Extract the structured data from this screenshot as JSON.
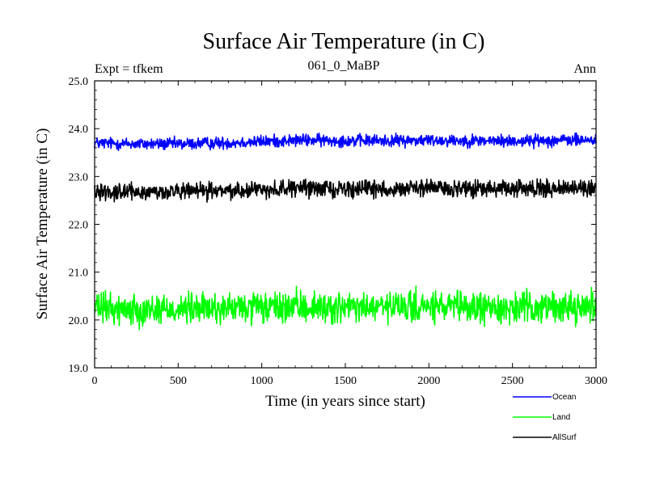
{
  "chart_data": {
    "type": "line",
    "title": "Surface Air Temperature (in C)",
    "subtitle": "061_0_MaBP",
    "left_note": "Expt = tfkem",
    "right_note": "Ann",
    "xlabel": "Time (in years since start)",
    "ylabel": "Surface Air Temperature (in C)",
    "xlim": [
      0,
      3000
    ],
    "ylim": [
      19.0,
      25.0
    ],
    "xticks": [
      0,
      500,
      1000,
      1500,
      2000,
      2500,
      3000
    ],
    "xtick_labels": [
      "0",
      "500",
      "1000",
      "1500",
      "2000",
      "2500",
      "3000"
    ],
    "yticks": [
      19.0,
      20.0,
      21.0,
      22.0,
      23.0,
      24.0,
      25.0
    ],
    "ytick_labels": [
      "19.0",
      "20.0",
      "21.0",
      "22.0",
      "23.0",
      "24.0",
      "25.0"
    ],
    "grid": false,
    "legend_position": "bottom-right outside plot",
    "series": [
      {
        "name": "Ocean",
        "color": "#0000ff",
        "x": [
          0,
          250,
          500,
          750,
          1000,
          1250,
          1500,
          1750,
          2000,
          2250,
          2500,
          2750,
          3000
        ],
        "values": [
          23.7,
          23.68,
          23.68,
          23.7,
          23.73,
          23.76,
          23.75,
          23.75,
          23.76,
          23.75,
          23.74,
          23.76,
          23.76
        ],
        "noise_amplitude": 0.12
      },
      {
        "name": "Land",
        "color": "#00ff00",
        "x": [
          0,
          250,
          500,
          750,
          1000,
          1250,
          1500,
          1750,
          2000,
          2250,
          2500,
          2750,
          3000
        ],
        "values": [
          20.25,
          20.22,
          20.23,
          20.24,
          20.25,
          20.27,
          20.25,
          20.26,
          20.27,
          20.25,
          20.25,
          20.27,
          20.28
        ],
        "noise_amplitude": 0.3
      },
      {
        "name": "AllSurf",
        "color": "#000000",
        "x": [
          0,
          250,
          500,
          750,
          1000,
          1250,
          1500,
          1750,
          2000,
          2250,
          2500,
          2750,
          3000
        ],
        "values": [
          22.7,
          22.67,
          22.68,
          22.7,
          22.73,
          22.76,
          22.74,
          22.74,
          22.76,
          22.74,
          22.73,
          22.75,
          22.76
        ],
        "noise_amplitude": 0.16
      }
    ]
  }
}
